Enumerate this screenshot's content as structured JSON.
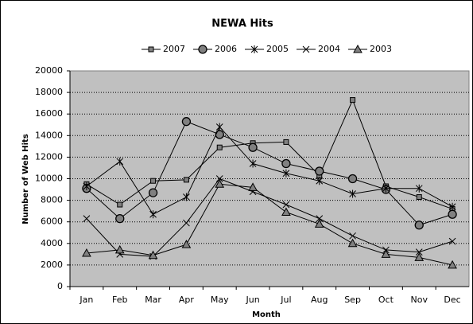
{
  "chart_data": {
    "type": "line",
    "title": "NEWA Hits",
    "x_label": "Month",
    "y_label": "Number of Web Hits",
    "categories": [
      "Jan",
      "Feb",
      "Mar",
      "Apr",
      "May",
      "Jun",
      "Jul",
      "Aug",
      "Sep",
      "Oct",
      "Nov",
      "Dec"
    ],
    "series": [
      {
        "name": "2007",
        "color": "#000000",
        "marker": "square",
        "values": [
          9500,
          7600,
          9800,
          9900,
          12900,
          13300,
          13400,
          10300,
          17300,
          9300,
          8300,
          7200
        ]
      },
      {
        "name": "2006",
        "color": "#000000",
        "marker": "circle",
        "values": [
          9100,
          6300,
          8700,
          15300,
          14100,
          12900,
          11400,
          10700,
          10000,
          9000,
          5700,
          6700
        ]
      },
      {
        "name": "2005",
        "color": "#000000",
        "marker": "star",
        "values": [
          9300,
          11600,
          6700,
          8300,
          14800,
          11400,
          10500,
          9800,
          8600,
          9100,
          9100,
          7400
        ]
      },
      {
        "name": "2004",
        "color": "#000000",
        "marker": "x",
        "values": [
          6300,
          3000,
          2800,
          5900,
          10000,
          8800,
          7600,
          6300,
          4700,
          3400,
          3200,
          4200
        ]
      },
      {
        "name": "2003",
        "color": "#000000",
        "marker": "triangle",
        "values": [
          3100,
          3400,
          2900,
          3900,
          9500,
          9200,
          6900,
          5800,
          4000,
          3000,
          2700,
          2000
        ]
      }
    ],
    "marker_fill": "#808080",
    "plot_background": "#c0c0c0",
    "ylim": [
      0,
      20000
    ],
    "yticks": [
      0,
      2000,
      4000,
      6000,
      8000,
      10000,
      12000,
      14000,
      16000,
      18000,
      20000
    ],
    "grid": true,
    "legend": "top"
  }
}
